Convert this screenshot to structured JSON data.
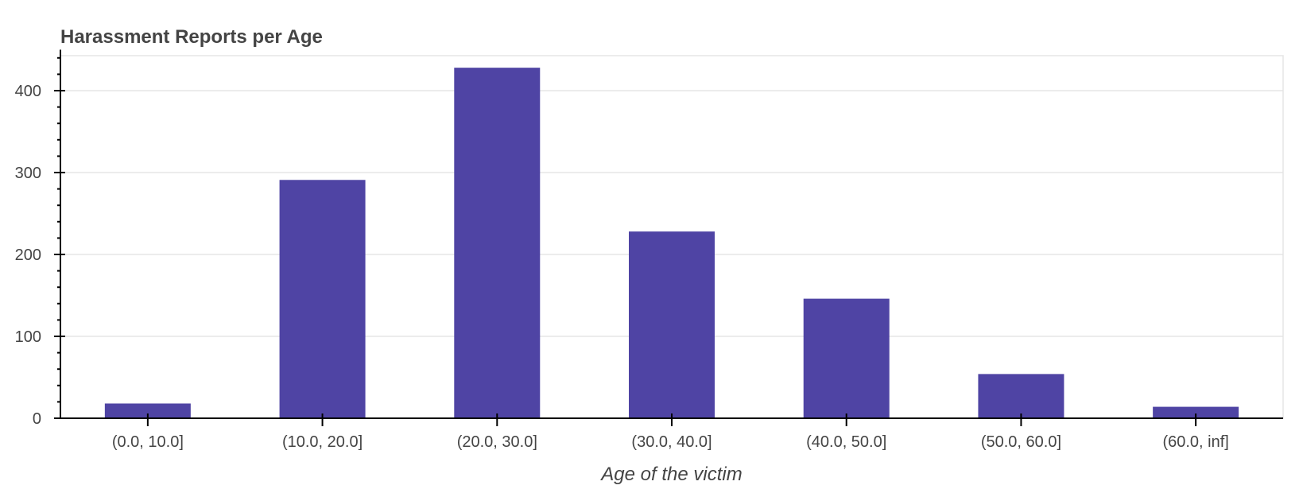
{
  "chart_data": {
    "type": "bar",
    "title": "Harassment Reports per Age",
    "xlabel": "Age of the victim",
    "ylabel": "",
    "categories": [
      "(0.0, 10.0]",
      "(10.0, 20.0]",
      "(20.0, 30.0]",
      "(30.0, 40.0]",
      "(40.0, 50.0]",
      "(50.0, 60.0]",
      "(60.0, inf]"
    ],
    "values": [
      18,
      291,
      428,
      228,
      146,
      54,
      14
    ],
    "ylim": [
      0,
      450
    ],
    "yticks": [
      0,
      100,
      200,
      300,
      400
    ],
    "grid": true,
    "bar_color": "#4f44a4",
    "legend": false
  }
}
